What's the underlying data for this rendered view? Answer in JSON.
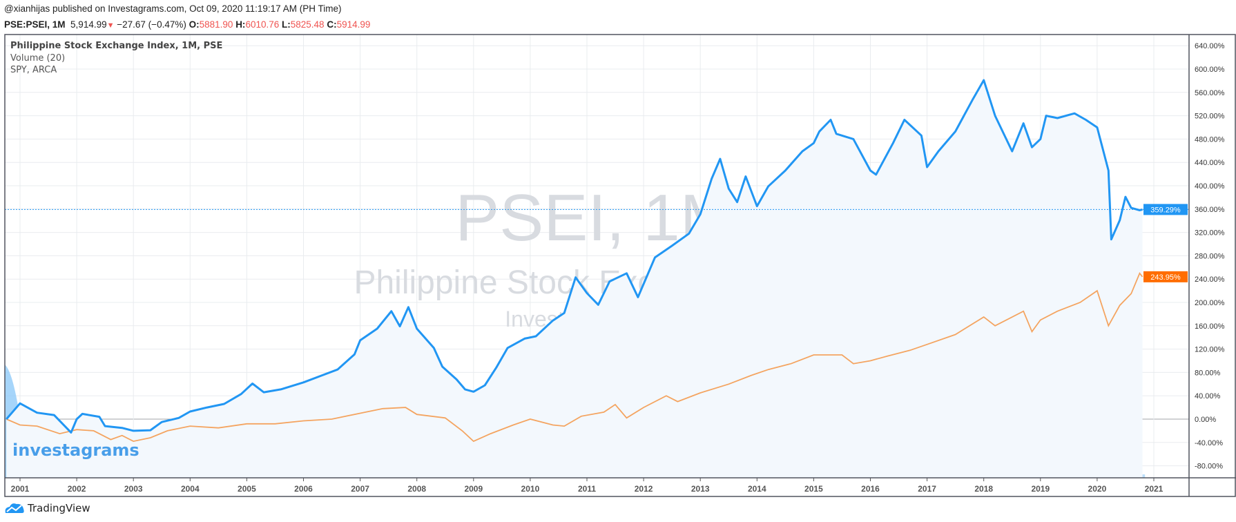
{
  "header": {
    "published_line": "@xianhijas published on Investagrams.com, Oct 09, 2020 11:19:17 AM (PH Time)",
    "symbol": "PSE:PSEI, 1M",
    "last": "5,914.99",
    "change": "−27.67 (−0.47%)",
    "o_label": "O:",
    "o": "5881.90",
    "h_label": "H:",
    "h": "6010.76",
    "l_label": "L:",
    "l": "5825.48",
    "c_label": "C:",
    "c": "5914.99"
  },
  "legend": {
    "main": "Philippine Stock Exchange Index, 1M, PSE",
    "volume": "Volume (20)",
    "compare": "SPY, ARCA"
  },
  "watermark": {
    "line1": "PSEI, 1M",
    "line2": "Philippine Stock Exchange Index",
    "line3": "Investagrams.com"
  },
  "logos": {
    "investagrams": "investagrams",
    "tradingview": "TradingView"
  },
  "colors": {
    "psei": "#2196f3",
    "spy": "#f4a460",
    "spy_badge": "#ff6d00",
    "grid": "#e9ecef",
    "fill": "#f3f8fd",
    "volume": "#90caf9"
  },
  "chart_data": {
    "type": "line",
    "ylabel": "",
    "ylim": [
      -100,
      660
    ],
    "y_ticks": [
      "640.00%",
      "600.00%",
      "560.00%",
      "520.00%",
      "480.00%",
      "440.00%",
      "400.00%",
      "360.00%",
      "320.00%",
      "280.00%",
      "240.00%",
      "200.00%",
      "160.00%",
      "120.00%",
      "80.00%",
      "40.00%",
      "0.00%",
      "-40.00%",
      "-80.00%"
    ],
    "y_tick_values": [
      640,
      600,
      560,
      520,
      480,
      440,
      400,
      360,
      320,
      280,
      240,
      200,
      160,
      120,
      80,
      40,
      0,
      -40,
      -80
    ],
    "x_ticks": [
      "2001",
      "2002",
      "2003",
      "2004",
      "2005",
      "2006",
      "2007",
      "2008",
      "2009",
      "2010",
      "2011",
      "2012",
      "2013",
      "2014",
      "2015",
      "2016",
      "2017",
      "2018",
      "2019",
      "2020",
      "2021"
    ],
    "grid": true,
    "scale": "percent",
    "series": [
      {
        "name": "PSEI",
        "last_label": "359.29%",
        "x": [
          2000.76,
          2001.0,
          2001.3,
          2001.6,
          2001.9,
          2002.0,
          2002.1,
          2002.4,
          2002.5,
          2002.8,
          2003.0,
          2003.3,
          2003.5,
          2003.8,
          2004.0,
          2004.3,
          2004.6,
          2004.9,
          2005.1,
          2005.3,
          2005.6,
          2006.0,
          2006.3,
          2006.6,
          2006.9,
          2007.0,
          2007.3,
          2007.55,
          2007.7,
          2007.85,
          2008.0,
          2008.3,
          2008.45,
          2008.7,
          2008.85,
          2009.0,
          2009.2,
          2009.4,
          2009.6,
          2009.9,
          2010.1,
          2010.4,
          2010.6,
          2010.8,
          2011.0,
          2011.2,
          2011.4,
          2011.7,
          2011.9,
          2012.2,
          2012.5,
          2012.8,
          2013.0,
          2013.2,
          2013.35,
          2013.5,
          2013.65,
          2013.8,
          2014.0,
          2014.2,
          2014.5,
          2014.8,
          2015.0,
          2015.1,
          2015.3,
          2015.4,
          2015.7,
          2016.0,
          2016.1,
          2016.4,
          2016.6,
          2016.9,
          2017.0,
          2017.2,
          2017.5,
          2017.8,
          2018.0,
          2018.2,
          2018.5,
          2018.7,
          2018.85,
          2019.0,
          2019.1,
          2019.3,
          2019.6,
          2019.8,
          2020.0,
          2020.2,
          2020.25,
          2020.4,
          2020.5,
          2020.6,
          2020.75,
          2020.8
        ],
        "values": [
          0,
          27,
          11,
          7,
          -23,
          0,
          9,
          4,
          -12,
          -15,
          -20,
          -19,
          -5,
          2,
          13,
          20,
          26,
          43,
          61,
          46,
          51,
          63,
          74,
          85,
          111,
          135,
          155,
          185,
          159,
          192,
          155,
          122,
          90,
          68,
          51,
          47,
          58,
          88,
          122,
          138,
          142,
          169,
          182,
          243,
          216,
          196,
          236,
          250,
          209,
          277,
          297,
          318,
          351,
          412,
          446,
          395,
          372,
          416,
          365,
          399,
          426,
          459,
          473,
          493,
          513,
          489,
          480,
          426,
          419,
          473,
          513,
          486,
          432,
          459,
          493,
          547,
          581,
          520,
          459,
          507,
          466,
          480,
          520,
          516,
          524,
          513,
          500,
          426,
          308,
          341,
          381,
          362,
          358,
          359.29
        ]
      },
      {
        "name": "SPY",
        "last_label": "243.95%",
        "x": [
          2000.76,
          2001.0,
          2001.3,
          2001.7,
          2002.0,
          2002.3,
          2002.6,
          2002.8,
          2003.0,
          2003.3,
          2003.6,
          2004.0,
          2004.5,
          2005.0,
          2005.5,
          2006.0,
          2006.5,
          2007.0,
          2007.4,
          2007.8,
          2008.0,
          2008.5,
          2008.8,
          2009.0,
          2009.3,
          2009.7,
          2010.0,
          2010.4,
          2010.6,
          2010.9,
          2011.3,
          2011.5,
          2011.7,
          2012.0,
          2012.4,
          2012.6,
          2013.0,
          2013.5,
          2013.9,
          2014.2,
          2014.6,
          2015.0,
          2015.5,
          2015.7,
          2016.0,
          2016.3,
          2016.7,
          2017.0,
          2017.5,
          2018.0,
          2018.2,
          2018.7,
          2018.85,
          2019.0,
          2019.3,
          2019.7,
          2020.0,
          2020.2,
          2020.4,
          2020.6,
          2020.75,
          2020.8
        ],
        "values": [
          0,
          -10,
          -12,
          -25,
          -18,
          -20,
          -35,
          -28,
          -38,
          -32,
          -20,
          -12,
          -15,
          -8,
          -8,
          -3,
          0,
          10,
          18,
          20,
          8,
          2,
          -20,
          -38,
          -25,
          -10,
          0,
          -10,
          -12,
          5,
          12,
          25,
          2,
          20,
          40,
          30,
          45,
          60,
          75,
          85,
          95,
          110,
          110,
          95,
          100,
          108,
          118,
          128,
          145,
          175,
          160,
          185,
          150,
          170,
          185,
          200,
          220,
          160,
          195,
          215,
          250,
          243.95
        ]
      }
    ]
  }
}
